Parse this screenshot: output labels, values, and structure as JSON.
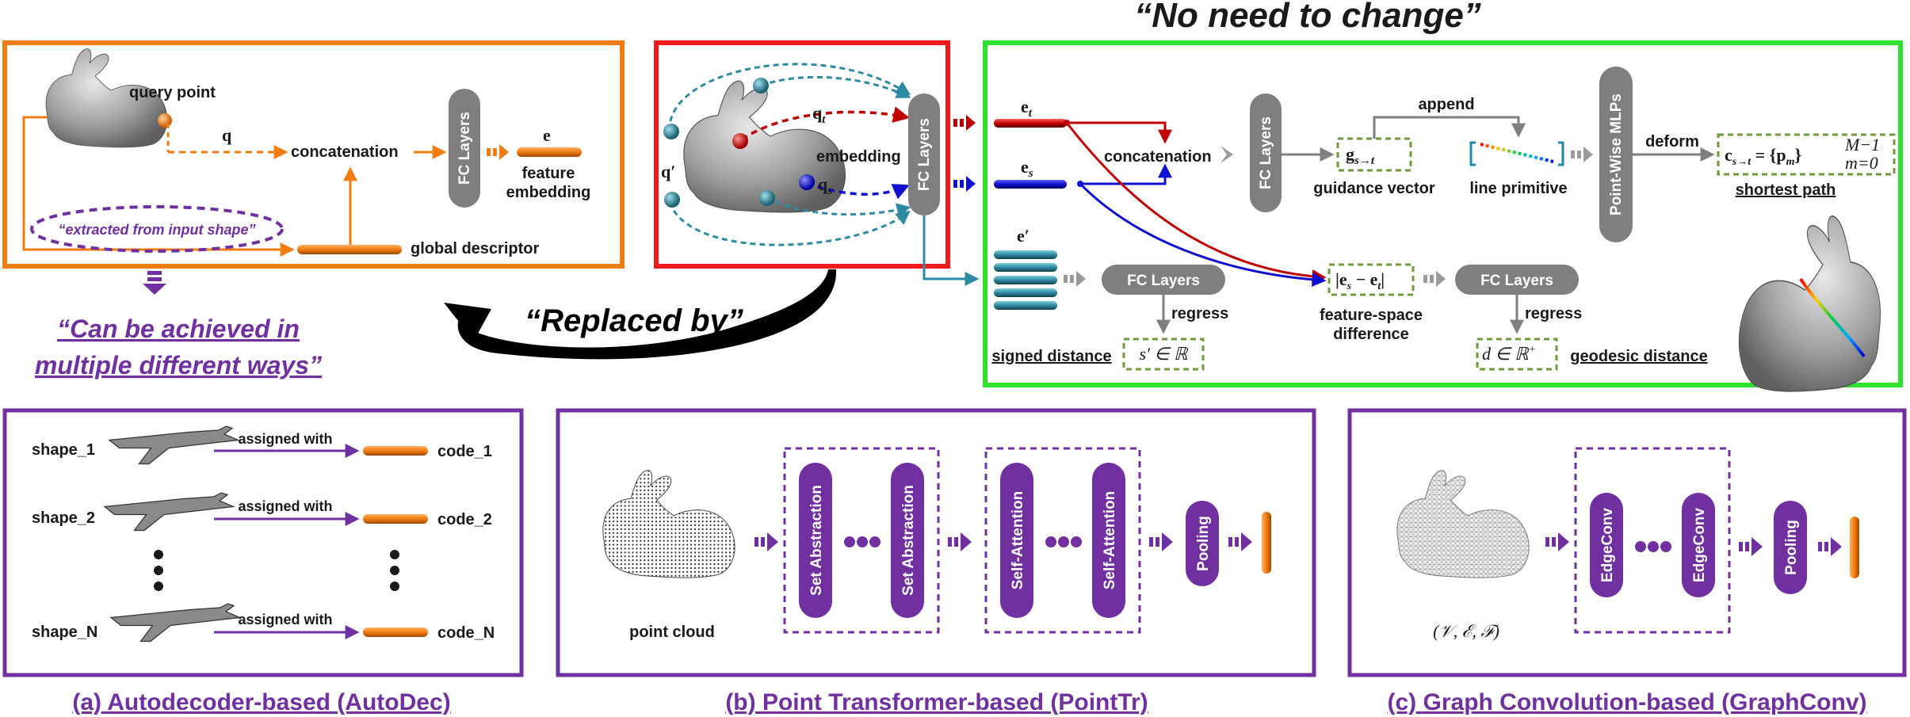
{
  "headline": "“No need to change”",
  "replaced_by": "“Replaced by”",
  "multi_ways": [
    "“Can be achieved in",
    "multiple different ways”"
  ],
  "colors": {
    "orange": "#f07c12",
    "red": "#f01a1a",
    "green": "#2fe02f",
    "purple": "#7030a0",
    "gray": "#7f7f7f",
    "dashed_green": "#6f9a3a",
    "teal": "#2e8aa0",
    "blue": "#1010d0",
    "darkred": "#c00000"
  },
  "left_box": {
    "query_point": "query point",
    "q": "q",
    "concatenation": "concatenation",
    "fc_layers": "FC Layers",
    "e": "e",
    "feature": "feature",
    "embedding": "embedding",
    "extracted": "“extracted from input shape”",
    "global_descriptor": "global descriptor"
  },
  "middle_box": {
    "q_t": "q",
    "q_t_sub": "t",
    "q_s": "q",
    "q_s_sub": "s",
    "q_prime": "q′",
    "embedding": "embedding",
    "fc_layers": "FC Layers"
  },
  "right_box": {
    "e_t": "e",
    "e_t_sub": "t",
    "e_s": "e",
    "e_s_sub": "s",
    "e_prime": "e′",
    "concatenation": "concatenation",
    "fc_layers_main": "FC Layers",
    "g": "g",
    "g_sub": "s→t",
    "guidance_vector": "guidance vector",
    "append": "append",
    "line_primitive": "line primitive",
    "pointwise": "Point-Wise MLPs",
    "deform": "deform",
    "c_formula": "c",
    "c_sub": "s→t",
    "c_rest": " = {p",
    "c_m": "m",
    "c_close": "}",
    "c_sup": "M−1",
    "c_low": "m=0",
    "shortest_path": "shortest path",
    "fc_layers_sd": "FC Layers",
    "regress_1": "regress",
    "signed_distance": "signed distance",
    "s_formula": "s′ ∈ ℝ",
    "diff_formula": "|e",
    "diff_s": "s",
    "diff_minus": " − e",
    "diff_t": "t",
    "diff_close": "|",
    "feature_space_1": "feature-space",
    "feature_space_2": "difference",
    "fc_layers_gd": "FC Layers",
    "regress_2": "regress",
    "d_formula": "d ∈ ℝ",
    "d_sup": "+",
    "geodesic_distance": "geodesic distance"
  },
  "panel_a": {
    "rows": [
      {
        "shape": "shape_1",
        "assigned": "assigned with",
        "code": "code_1"
      },
      {
        "shape": "shape_2",
        "assigned": "assigned with",
        "code": "code_2"
      },
      {
        "shape": "shape_N",
        "assigned": "assigned with",
        "code": "code_N"
      }
    ],
    "caption": "(a) Autodecoder-based (AutoDec)"
  },
  "panel_b": {
    "point_cloud": "point cloud",
    "set_abstraction": "Set Abstraction",
    "self_attention": "Self-Attention",
    "pooling": "Pooling",
    "caption": "(b) Point Transformer-based (PointTr)"
  },
  "panel_c": {
    "graph": "(𝒱, ℰ, ℱ)",
    "edgeconv": "EdgeConv",
    "pooling": "Pooling",
    "caption": "(c) Graph Convolution-based (GraphConv)"
  }
}
